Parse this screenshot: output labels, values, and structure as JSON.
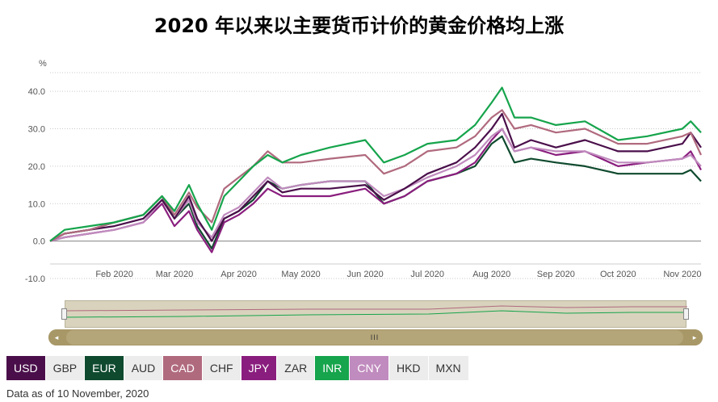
{
  "chart_data": {
    "type": "line",
    "title": "2020 年以来以主要货币计价的黄金价格均上涨",
    "ylabel": "%",
    "ylim": [
      -10,
      45
    ],
    "yticks": [
      -10,
      0,
      10,
      20,
      30,
      40
    ],
    "ytick_labels": [
      "-10.0",
      "0.0",
      "10.0",
      "20.0",
      "30.0",
      "40.0"
    ],
    "xlim": [
      "2020-01-01",
      "2020-11-10"
    ],
    "xticks": [
      "2020-02-01",
      "2020-03-01",
      "2020-04-01",
      "2020-05-01",
      "2020-06-01",
      "2020-07-01",
      "2020-08-01",
      "2020-09-01",
      "2020-10-01",
      "2020-11-01"
    ],
    "xtick_labels": [
      "Feb 2020",
      "Mar 2020",
      "Apr 2020",
      "May 2020",
      "Jun 2020",
      "Jul 2020",
      "Aug 2020",
      "Sep 2020",
      "Oct 2020",
      "Nov 2020"
    ],
    "grid": true,
    "x": [
      "2020-01-01",
      "2020-01-08",
      "2020-01-20",
      "2020-02-01",
      "2020-02-15",
      "2020-02-24",
      "2020-03-01",
      "2020-03-08",
      "2020-03-12",
      "2020-03-19",
      "2020-03-25",
      "2020-04-01",
      "2020-04-08",
      "2020-04-15",
      "2020-04-22",
      "2020-05-01",
      "2020-05-15",
      "2020-06-01",
      "2020-06-10",
      "2020-06-20",
      "2020-07-01",
      "2020-07-15",
      "2020-07-24",
      "2020-08-01",
      "2020-08-06",
      "2020-08-12",
      "2020-08-20",
      "2020-09-01",
      "2020-09-15",
      "2020-10-01",
      "2020-10-15",
      "2020-11-01",
      "2020-11-05",
      "2020-11-10"
    ],
    "series": [
      {
        "name": "USD",
        "color": "#4a0f4a",
        "values": [
          0,
          2,
          3,
          4,
          6,
          11,
          6,
          12,
          6,
          0,
          6,
          8,
          12,
          16,
          13,
          14,
          14,
          15,
          11,
          14,
          18,
          21,
          25,
          30,
          34,
          25,
          27,
          25,
          27,
          24,
          24,
          26,
          29,
          25
        ]
      },
      {
        "name": "EUR",
        "color": "#0f4a2e",
        "values": [
          0,
          2,
          3,
          5,
          7,
          12,
          6,
          10,
          4,
          -2,
          6,
          8,
          11,
          16,
          14,
          15,
          16,
          16,
          10,
          12,
          16,
          18,
          20,
          26,
          28,
          21,
          22,
          21,
          20,
          18,
          18,
          18,
          19,
          16
        ]
      },
      {
        "name": "CAD",
        "color": "#b06a7e",
        "values": [
          0,
          2,
          3,
          5,
          7,
          12,
          7,
          13,
          9,
          5,
          14,
          17,
          20,
          24,
          21,
          21,
          22,
          23,
          18,
          20,
          24,
          25,
          28,
          33,
          35,
          30,
          31,
          29,
          30,
          26,
          26,
          28,
          29,
          23
        ]
      },
      {
        "name": "JPY",
        "color": "#8a1e7e",
        "values": [
          0,
          1,
          2,
          3,
          5,
          10,
          4,
          8,
          3,
          -3,
          5,
          7,
          10,
          14,
          12,
          12,
          12,
          14,
          10,
          12,
          16,
          18,
          21,
          27,
          30,
          24,
          25,
          23,
          24,
          20,
          21,
          22,
          24,
          19
        ]
      },
      {
        "name": "INR",
        "color": "#16a44c",
        "values": [
          0,
          3,
          4,
          5,
          7,
          12,
          8,
          15,
          10,
          3,
          12,
          16,
          20,
          23,
          21,
          23,
          25,
          27,
          21,
          23,
          26,
          27,
          31,
          37,
          41,
          33,
          33,
          31,
          32,
          27,
          28,
          30,
          32,
          29
        ]
      },
      {
        "name": "CNY",
        "color": "#c08bbe",
        "values": [
          0,
          1,
          2,
          3,
          5,
          11,
          6,
          11,
          5,
          1,
          7,
          9,
          13,
          17,
          14,
          15,
          16,
          16,
          12,
          14,
          17,
          20,
          23,
          28,
          30,
          24,
          25,
          24,
          24,
          21,
          21,
          22,
          23,
          20
        ]
      }
    ]
  },
  "currencies": [
    {
      "label": "USD",
      "active": true,
      "color": "#4a0f4a"
    },
    {
      "label": "GBP",
      "active": false,
      "color": "#ececec"
    },
    {
      "label": "EUR",
      "active": true,
      "color": "#0f4a2e"
    },
    {
      "label": "AUD",
      "active": false,
      "color": "#ececec"
    },
    {
      "label": "CAD",
      "active": true,
      "color": "#b06a7e"
    },
    {
      "label": "CHF",
      "active": false,
      "color": "#ececec"
    },
    {
      "label": "JPY",
      "active": true,
      "color": "#8a1e7e"
    },
    {
      "label": "ZAR",
      "active": false,
      "color": "#ececec"
    },
    {
      "label": "INR",
      "active": true,
      "color": "#16a44c"
    },
    {
      "label": "CNY",
      "active": true,
      "color": "#c08bbe"
    },
    {
      "label": "HKD",
      "active": false,
      "color": "#ececec"
    },
    {
      "label": "MXN",
      "active": false,
      "color": "#ececec"
    }
  ],
  "scrollbar": {
    "thumb_label": "III",
    "left_arrow": "◂",
    "right_arrow": "▸"
  },
  "footnote": "Data as of 10 November, 2020"
}
